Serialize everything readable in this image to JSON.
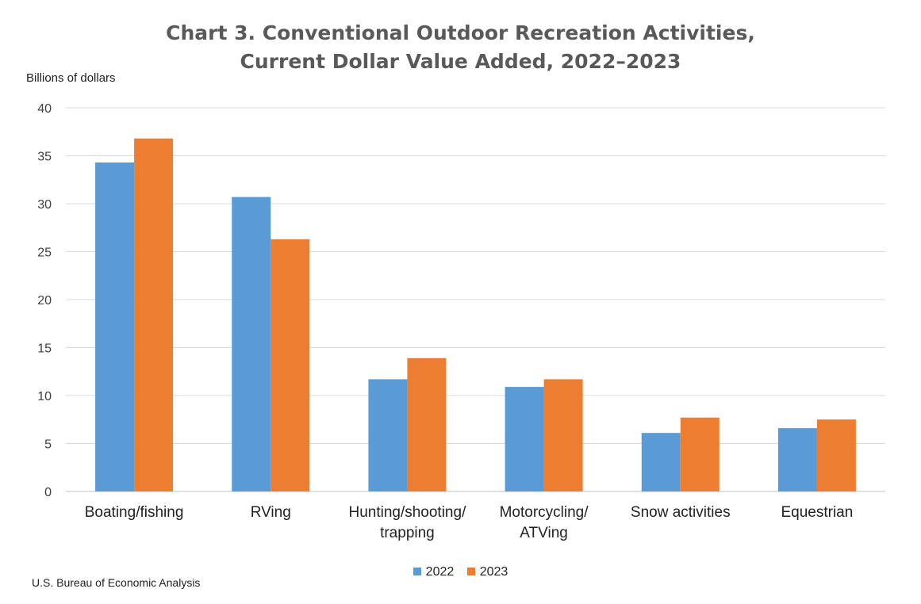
{
  "chart_data": {
    "type": "bar",
    "title_line1": "Chart 3. Conventional Outdoor Recreation Activities,",
    "title_line2": "Current Dollar Value Added, 2022–2023",
    "ylabel": "Billions of dollars",
    "xlabel": "",
    "ylim": [
      0,
      40
    ],
    "yticks": [
      "0",
      "5",
      "10",
      "15",
      "20",
      "25",
      "30",
      "35",
      "40"
    ],
    "grid": true,
    "legend_position": "bottom",
    "categories": [
      [
        "Boating/fishing"
      ],
      [
        "RVing"
      ],
      [
        "Hunting/shooting/",
        "trapping"
      ],
      [
        "Motorcycling/",
        "ATVing"
      ],
      [
        "Snow activities"
      ],
      [
        "Equestrian"
      ]
    ],
    "series": [
      {
        "name": "2022",
        "color": "#5B9BD5",
        "values": [
          34.3,
          30.7,
          11.7,
          10.9,
          6.1,
          6.6
        ]
      },
      {
        "name": "2023",
        "color": "#ED7D31",
        "values": [
          36.8,
          26.3,
          13.9,
          11.7,
          7.7,
          7.5
        ]
      }
    ],
    "source": "U.S. Bureau of Economic Analysis"
  }
}
